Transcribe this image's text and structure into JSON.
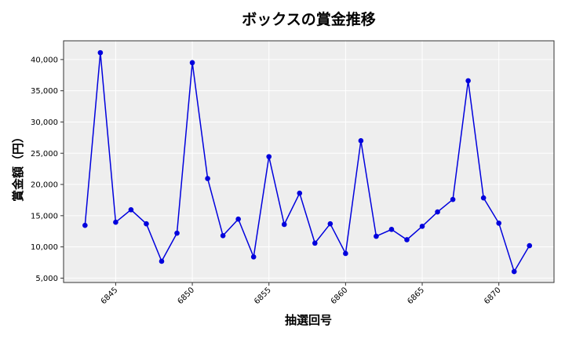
{
  "chart_data": {
    "type": "line",
    "title": "ボックスの賞金推移",
    "xlabel": "抽選回号",
    "ylabel": "賞金額（円）",
    "x": [
      6843,
      6844,
      6845,
      6846,
      6847,
      6848,
      6849,
      6850,
      6851,
      6852,
      6853,
      6854,
      6855,
      6856,
      6857,
      6858,
      6859,
      6860,
      6861,
      6862,
      6863,
      6864,
      6865,
      6866,
      6867,
      6868,
      6869,
      6870,
      6871,
      6872
    ],
    "series": [
      {
        "name": "ボックス",
        "color": "#0000dd",
        "values": [
          13450,
          41100,
          13950,
          15950,
          13700,
          7700,
          12200,
          39500,
          20950,
          11800,
          14450,
          8400,
          24450,
          13600,
          18600,
          10600,
          13700,
          8950,
          27000,
          11700,
          12800,
          11150,
          13300,
          15600,
          17600,
          36600,
          17850,
          13800,
          6050,
          10200
        ]
      }
    ],
    "xticks": [
      6845,
      6850,
      6855,
      6860,
      6865,
      6870
    ],
    "yticks": [
      5000,
      10000,
      15000,
      20000,
      25000,
      30000,
      35000,
      40000
    ],
    "ytick_labels": [
      "5,000",
      "10,000",
      "15,000",
      "20,000",
      "25,000",
      "30,000",
      "35,000",
      "40,000"
    ],
    "xlim": [
      6841.6,
      6873.6
    ],
    "ylim": [
      4300,
      43000
    ],
    "grid": true,
    "legend": null,
    "background": "#eeeeee",
    "grid_color": "#ffffff"
  }
}
